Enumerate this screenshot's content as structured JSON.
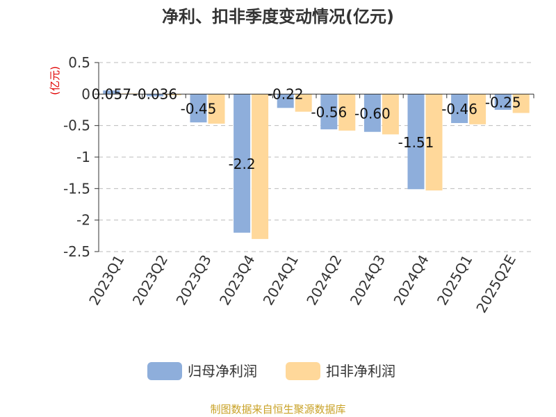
{
  "chart_data": {
    "type": "bar",
    "title": "净利、扣非季度变动情况(亿元)",
    "ylabel": "(亿元)",
    "xlabel": "",
    "categories": [
      "2023Q1",
      "2023Q2",
      "2023Q3",
      "2023Q4",
      "2024Q1",
      "2024Q2",
      "2024Q3",
      "2024Q4",
      "2025Q1",
      "2025Q2E"
    ],
    "series": [
      {
        "name": "归母净利润",
        "color": "#8eaedb",
        "values": [
          0.057,
          -0.036,
          -0.45,
          -2.2,
          -0.22,
          -0.56,
          -0.6,
          -1.51,
          -0.46,
          -0.25
        ],
        "labels": [
          "0.057",
          "-0.036",
          "-0.45",
          "-2.2",
          "-0.22",
          "-0.56",
          "-0.60",
          "-1.51",
          "-0.46",
          "-0.25"
        ]
      },
      {
        "name": "扣非净利润",
        "color": "#ffd89a",
        "values": [
          0.01,
          -0.02,
          -0.47,
          -2.3,
          -0.28,
          -0.58,
          -0.64,
          -1.53,
          -0.48,
          -0.3
        ],
        "labels": []
      }
    ],
    "ylim": [
      -2.5,
      0.5
    ],
    "yticks": [
      0.5,
      0,
      -0.5,
      -1,
      -1.5,
      -2,
      -2.5
    ],
    "ytick_labels": [
      "0.5",
      "0",
      "-0.5",
      "-1",
      "-1.5",
      "-2",
      "-2.5"
    ],
    "grid": true,
    "legend_position": "bottom"
  },
  "footer": {
    "source": "制图数据来自恒生聚源数据库"
  }
}
